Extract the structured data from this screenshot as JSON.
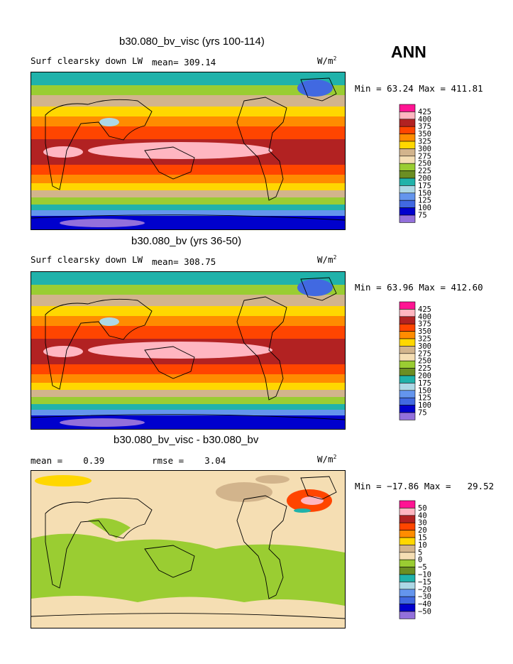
{
  "season": "ANN",
  "units": {
    "main": "W/m",
    "power": "2"
  },
  "panels": [
    {
      "title": "b30.080_bv_visc (yrs 100-114)",
      "left_label": "Surf clearsky down LW",
      "mean_label": "mean=",
      "mean_value": "309.14",
      "min_label": "Min =",
      "min_value": "63.24",
      "max_label": "Max =",
      "max_value": "411.81"
    },
    {
      "title": "b30.080_bv (yrs 36-50)",
      "left_label": "Surf clearsky down LW",
      "mean_label": "mean=",
      "mean_value": "308.75",
      "min_label": "Min =",
      "min_value": "63.96",
      "max_label": "Max =",
      "max_value": "412.60"
    },
    {
      "title": "b30.080_bv_visc - b30.080_bv",
      "mean_label": "mean =",
      "mean_value": "0.39",
      "rmse_label": "rmse =",
      "rmse_value": "3.04",
      "min_label": "Min =",
      "min_value": "−17.86",
      "max_label": "Max =",
      "max_value": "29.52"
    }
  ],
  "chart_data": [
    {
      "type": "heatmap",
      "title": "b30.080_bv_visc (yrs 100-114)",
      "variable": "Surf clearsky down LW",
      "units": "W/m^2",
      "mean": 309.14,
      "min": 63.24,
      "max": 411.81,
      "colorbar_levels": [
        "425",
        "400",
        "375",
        "350",
        "325",
        "300",
        "275",
        "250",
        "225",
        "200",
        "175",
        "150",
        "125",
        "100",
        "75"
      ],
      "colors": [
        "#ff1493",
        "#ffb6c1",
        "#b22222",
        "#ff4500",
        "#ff8c00",
        "#ffd700",
        "#d2b48c",
        "#f5deb3",
        "#9acd32",
        "#6b8e23",
        "#20b2aa",
        "#add8e6",
        "#6495ed",
        "#4169e1",
        "#0000cd",
        "#9370db"
      ]
    },
    {
      "type": "heatmap",
      "title": "b30.080_bv (yrs 36-50)",
      "variable": "Surf clearsky down LW",
      "units": "W/m^2",
      "mean": 308.75,
      "min": 63.96,
      "max": 412.6,
      "colorbar_levels": [
        "425",
        "400",
        "375",
        "350",
        "325",
        "300",
        "275",
        "250",
        "225",
        "200",
        "175",
        "150",
        "125",
        "100",
        "75"
      ],
      "colors": [
        "#ff1493",
        "#ffb6c1",
        "#b22222",
        "#ff4500",
        "#ff8c00",
        "#ffd700",
        "#d2b48c",
        "#f5deb3",
        "#9acd32",
        "#6b8e23",
        "#20b2aa",
        "#add8e6",
        "#6495ed",
        "#4169e1",
        "#0000cd",
        "#9370db"
      ]
    },
    {
      "type": "heatmap",
      "title": "b30.080_bv_visc - b30.080_bv",
      "units": "W/m^2",
      "mean": 0.39,
      "rmse": 3.04,
      "min": -17.86,
      "max": 29.52,
      "colorbar_levels": [
        "50",
        "40",
        "30",
        "20",
        "15",
        "10",
        "5",
        "0",
        "−5",
        "−10",
        "−15",
        "−20",
        "−30",
        "−40",
        "−50"
      ],
      "colors": [
        "#ff1493",
        "#ffb6c1",
        "#b22222",
        "#ff4500",
        "#ff8c00",
        "#ffd700",
        "#d2b48c",
        "#f5deb3",
        "#9acd32",
        "#6b8e23",
        "#20b2aa",
        "#add8e6",
        "#6495ed",
        "#4169e1",
        "#0000cd",
        "#9370db"
      ]
    }
  ]
}
